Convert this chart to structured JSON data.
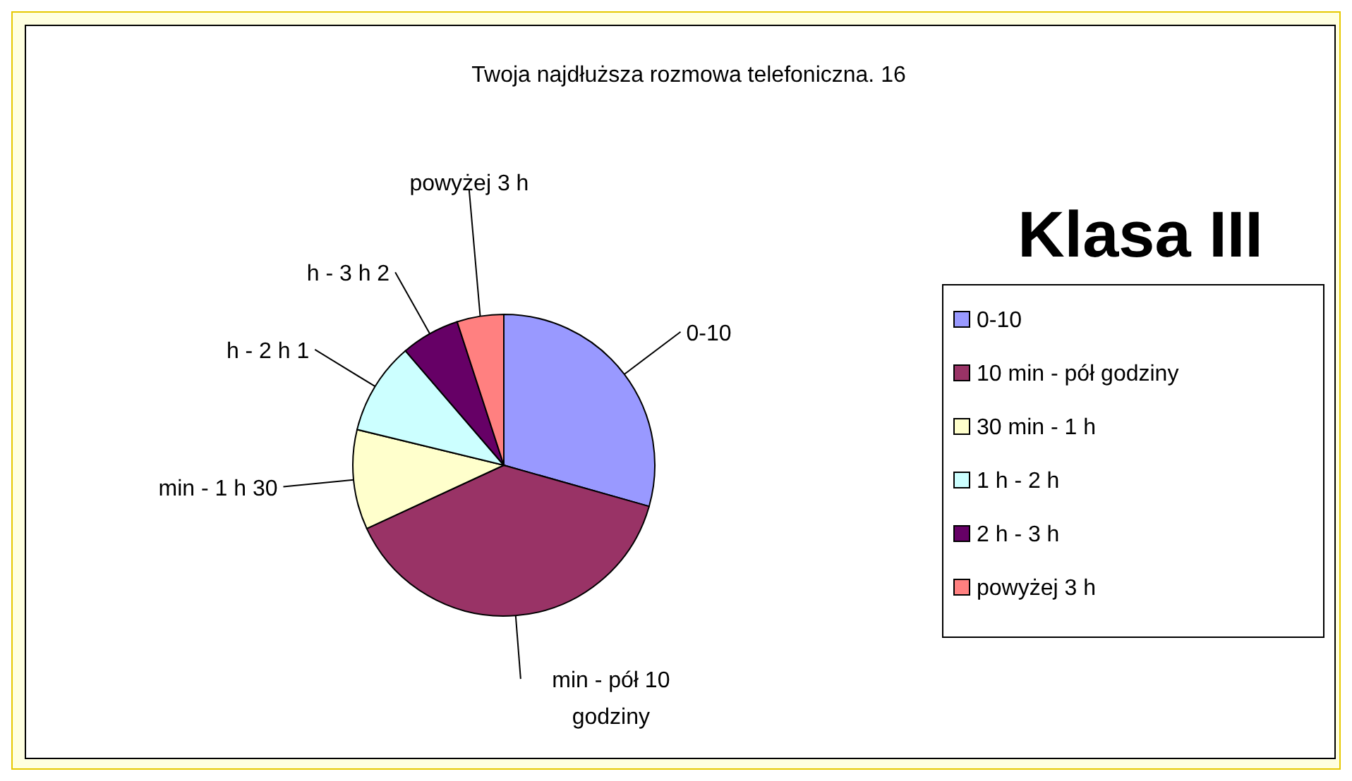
{
  "chart_data": {
    "type": "pie",
    "title": "Twoja najdłuższa rozmowa telefoniczna. 16",
    "subtitle": "Klasa III",
    "categories": [
      "0-10",
      "10 min - pół godziny",
      "30 min - 1 h",
      "1 h - 2 h",
      "2 h - 3 h",
      "powyżej 3 h"
    ],
    "values": [
      29.4,
      38.7,
      10.7,
      9.9,
      6.3,
      5.0
    ],
    "colors": [
      "#9999ff",
      "#993366",
      "#ffffcc",
      "#ccffff",
      "#660066",
      "#ff8080"
    ],
    "annotations": [
      "0-10",
      "min - pół 10 godziny",
      "min - 1 h 30",
      "h - 2 h 1",
      "h - 3 h 2",
      "powyżej 3 h"
    ],
    "legend": "right"
  }
}
